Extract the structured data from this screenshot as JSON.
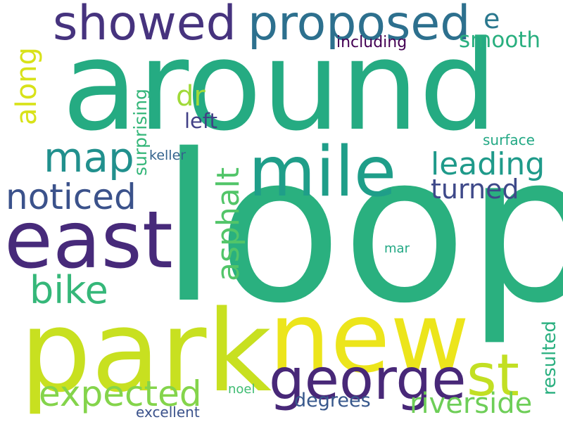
{
  "colors": {
    "background": "#ffffff",
    "dark_purple": "#472a7a",
    "indigo": "#433e85",
    "slate_blue": "#3a548c",
    "blue_teal": "#2d708e",
    "teal": "#25858e",
    "teal_green": "#1f9e89",
    "green": "#2ab07f",
    "light_green": "#52c569",
    "lime": "#86d549",
    "yellow_green": "#c2df23",
    "yellow": "#ece51b"
  },
  "words": {
    "around": "around",
    "loop": "loop",
    "park": "park",
    "new": "new",
    "east": "east",
    "mile": "mile",
    "george": "george",
    "st": "st",
    "showed": "showed",
    "proposed": "proposed",
    "map": "map",
    "noticed": "noticed",
    "bike": "bike",
    "expected": "expected",
    "asphalt": "asphalt",
    "leading": "leading",
    "riverside": "riverside",
    "turned": "turned",
    "along": "along",
    "dr": "dr",
    "smooth": "smooth",
    "e": "e",
    "left": "left",
    "surprising": "surprising",
    "resulted": "resulted",
    "degrees": "degrees",
    "including": "including",
    "surface": "surface",
    "keller": "keller",
    "mar": "mar",
    "noel": "noel",
    "excellent": "excellent"
  }
}
